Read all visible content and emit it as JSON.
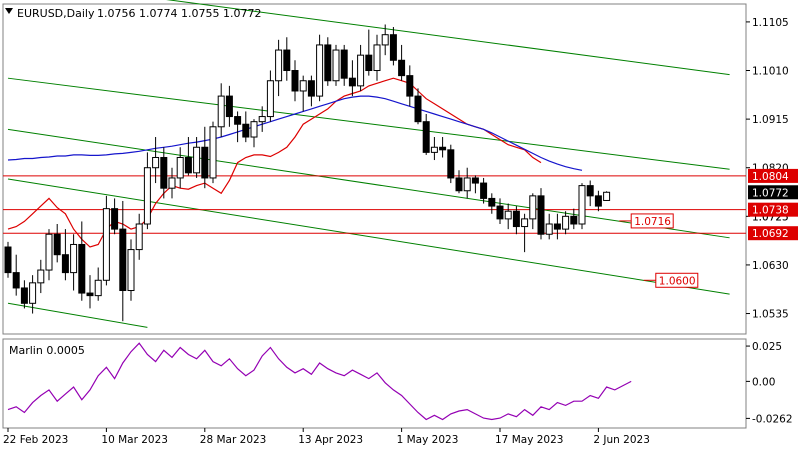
{
  "header": {
    "symbol_label": "EURUSD,Daily",
    "ohlc": "1.0756 1.0774 1.0755 1.0772"
  },
  "indicator": {
    "label": "Marlin 0.0005"
  },
  "chart_data": {
    "type": "candlestick",
    "price_axis": {
      "range": [
        1.0495,
        1.114
      ],
      "ticks": [
        "1.1105",
        "1.1010",
        "1.0915",
        "1.0820",
        "1.0725",
        "1.0630",
        "1.0535"
      ]
    },
    "osc_axis": {
      "range": [
        -0.033,
        0.03
      ],
      "ticks": [
        "0.025",
        "0.00",
        "-0.0262"
      ]
    },
    "x_ticks": [
      {
        "i": 0,
        "label": "22 Feb 2023"
      },
      {
        "i": 12,
        "label": "10 Mar 2023"
      },
      {
        "i": 24,
        "label": "28 Mar 2023"
      },
      {
        "i": 36,
        "label": "13 Apr 2023"
      },
      {
        "i": 48,
        "label": "1 May 2023"
      },
      {
        "i": 60,
        "label": "17 May 2023"
      },
      {
        "i": 72,
        "label": "2 Jun 2023"
      }
    ],
    "candles": [
      [
        1.0665,
        1.0675,
        1.0605,
        1.0615
      ],
      [
        1.0615,
        1.065,
        1.057,
        1.0585
      ],
      [
        1.0585,
        1.06,
        1.0545,
        1.0555
      ],
      [
        1.0555,
        1.061,
        1.0535,
        1.0595
      ],
      [
        1.0595,
        1.064,
        1.0575,
        1.062
      ],
      [
        1.062,
        1.07,
        1.06,
        1.069
      ],
      [
        1.069,
        1.071,
        1.0635,
        1.065
      ],
      [
        1.065,
        1.07,
        1.06,
        1.0615
      ],
      [
        1.0615,
        1.069,
        1.058,
        1.067
      ],
      [
        1.067,
        1.0715,
        1.056,
        1.0575
      ],
      [
        1.0575,
        1.061,
        1.0545,
        1.057
      ],
      [
        1.057,
        1.0625,
        1.056,
        1.06
      ],
      [
        1.06,
        1.0765,
        1.059,
        1.074
      ],
      [
        1.074,
        1.076,
        1.069,
        1.07
      ],
      [
        1.07,
        1.0755,
        1.052,
        1.058
      ],
      [
        1.058,
        1.068,
        1.056,
        1.066
      ],
      [
        1.066,
        1.073,
        1.064,
        1.071
      ],
      [
        1.071,
        1.085,
        1.07,
        1.082
      ],
      [
        1.082,
        1.088,
        1.079,
        1.084
      ],
      [
        1.084,
        1.086,
        1.076,
        1.078
      ],
      [
        1.078,
        1.082,
        1.076,
        1.08
      ],
      [
        1.08,
        1.086,
        1.078,
        1.084
      ],
      [
        1.084,
        1.088,
        1.0805,
        1.081
      ],
      [
        1.081,
        1.088,
        1.08,
        1.086
      ],
      [
        1.086,
        1.09,
        1.078,
        1.08
      ],
      [
        1.08,
        1.091,
        1.079,
        1.09
      ],
      [
        1.09,
        1.0985,
        1.088,
        1.096
      ],
      [
        1.096,
        1.098,
        1.09,
        1.092
      ],
      [
        1.092,
        1.093,
        1.087,
        1.0905
      ],
      [
        1.0905,
        1.093,
        1.087,
        1.088
      ],
      [
        1.088,
        1.0915,
        1.086,
        1.091
      ],
      [
        1.091,
        1.094,
        1.089,
        1.092
      ],
      [
        1.092,
        1.101,
        1.091,
        1.099
      ],
      [
        1.099,
        1.107,
        1.096,
        1.105
      ],
      [
        1.105,
        1.1075,
        1.099,
        1.101
      ],
      [
        1.101,
        1.103,
        1.095,
        1.097
      ],
      [
        1.097,
        1.1,
        1.093,
        1.099
      ],
      [
        1.099,
        1.1,
        1.094,
        1.096
      ],
      [
        1.096,
        1.108,
        1.095,
        1.106
      ],
      [
        1.106,
        1.1075,
        1.098,
        1.099
      ],
      [
        1.099,
        1.106,
        1.098,
        1.105
      ],
      [
        1.105,
        1.106,
        1.098,
        1.0995
      ],
      [
        1.0995,
        1.103,
        1.096,
        1.098
      ],
      [
        1.098,
        1.106,
        1.097,
        1.104
      ],
      [
        1.104,
        1.109,
        1.1,
        1.101
      ],
      [
        1.101,
        1.108,
        1.099,
        1.106
      ],
      [
        1.106,
        1.11,
        1.104,
        1.108
      ],
      [
        1.108,
        1.1095,
        1.102,
        1.103
      ],
      [
        1.103,
        1.106,
        1.099,
        1.1
      ],
      [
        1.1,
        1.102,
        1.094,
        1.096
      ],
      [
        1.096,
        1.0975,
        1.0905,
        1.091
      ],
      [
        1.091,
        1.0925,
        1.0845,
        1.085
      ],
      [
        1.085,
        1.088,
        1.0835,
        1.086
      ],
      [
        1.086,
        1.088,
        1.084,
        1.0855
      ],
      [
        1.0855,
        1.0865,
        1.079,
        1.08
      ],
      [
        1.08,
        1.0815,
        1.077,
        1.0775
      ],
      [
        1.0775,
        1.082,
        1.076,
        1.08
      ],
      [
        1.08,
        1.0805,
        1.077,
        1.079
      ],
      [
        1.079,
        1.08,
        1.075,
        1.076
      ],
      [
        1.076,
        1.077,
        1.073,
        1.0745
      ],
      [
        1.0745,
        1.076,
        1.071,
        1.072
      ],
      [
        1.072,
        1.075,
        1.07,
        1.0735
      ],
      [
        1.0735,
        1.0745,
        1.069,
        1.0705
      ],
      [
        1.0705,
        1.073,
        1.0655,
        1.072
      ],
      [
        1.072,
        1.077,
        1.07,
        1.0765
      ],
      [
        1.0765,
        1.078,
        1.068,
        1.069
      ],
      [
        1.069,
        1.073,
        1.068,
        1.071
      ],
      [
        1.071,
        1.073,
        1.068,
        1.07
      ],
      [
        1.07,
        1.0735,
        1.069,
        1.0725
      ],
      [
        1.0725,
        1.074,
        1.07,
        1.071
      ],
      [
        1.071,
        1.079,
        1.07,
        1.0785
      ],
      [
        1.0785,
        1.0795,
        1.0745,
        1.0765
      ],
      [
        1.0765,
        1.0775,
        1.0735,
        1.0745
      ],
      [
        1.0756,
        1.0774,
        1.0755,
        1.0772
      ]
    ],
    "ma_red": [
      1.07,
      1.0705,
      1.0715,
      1.073,
      1.0745,
      1.076,
      1.0742,
      1.073,
      1.07,
      1.068,
      1.0665,
      1.067,
      1.07,
      1.0715,
      1.071,
      1.07,
      1.0705,
      1.072,
      1.075,
      1.077,
      1.0785,
      1.078,
      1.0778,
      1.0785,
      1.079,
      1.078,
      1.077,
      1.0795,
      1.083,
      1.084,
      1.0845,
      1.0845,
      1.0842,
      1.085,
      1.086,
      1.088,
      1.0905,
      1.0915,
      1.0925,
      1.0935,
      1.095,
      1.096,
      1.0965,
      1.097,
      1.098,
      1.0985,
      1.099,
      1.0995,
      1.099,
      1.0985,
      1.097,
      1.0955,
      1.0945,
      1.0935,
      1.0925,
      1.0915,
      1.0905,
      1.09,
      1.0895,
      1.0885,
      1.0875,
      1.0865,
      1.086,
      1.0855,
      1.084,
      1.083
    ],
    "ma_blue": [
      1.0835,
      1.0836,
      1.0838,
      1.0838,
      1.084,
      1.0841,
      1.0843,
      1.0843,
      1.0845,
      1.0845,
      1.0844,
      1.0844,
      1.0845,
      1.0847,
      1.0848,
      1.085,
      1.0852,
      1.0855,
      1.0858,
      1.086,
      1.0862,
      1.0865,
      1.0868,
      1.087,
      1.0873,
      1.0876,
      1.088,
      1.0885,
      1.089,
      1.0895,
      1.09,
      1.0905,
      1.091,
      1.0915,
      1.092,
      1.0925,
      1.093,
      1.0935,
      1.094,
      1.0945,
      1.095,
      1.0955,
      1.0958,
      1.096,
      1.096,
      1.0958,
      1.0955,
      1.095,
      1.0945,
      1.094,
      1.0935,
      1.093,
      1.0925,
      1.092,
      1.0915,
      1.091,
      1.0905,
      1.09,
      1.0895,
      1.0888,
      1.088,
      1.0872,
      1.0864,
      1.0856,
      1.0848,
      1.084,
      1.0833,
      1.0827,
      1.0822,
      1.0818,
      1.0815
    ],
    "marlin": [
      -0.02,
      -0.018,
      -0.022,
      -0.015,
      -0.01,
      -0.006,
      -0.014,
      -0.009,
      -0.004,
      -0.013,
      -0.006,
      0.004,
      0.01,
      0.002,
      0.013,
      0.021,
      0.027,
      0.019,
      0.014,
      0.022,
      0.017,
      0.024,
      0.019,
      0.016,
      0.022,
      0.014,
      0.011,
      0.016,
      0.009,
      0.004,
      0.008,
      0.018,
      0.024,
      0.016,
      0.01,
      0.006,
      0.009,
      0.005,
      0.013,
      0.009,
      0.006,
      0.004,
      0.008,
      0.005,
      0.002,
      0.006,
      -0.001,
      -0.006,
      -0.01,
      -0.016,
      -0.022,
      -0.027,
      -0.024,
      -0.027,
      -0.023,
      -0.021,
      -0.02,
      -0.023,
      -0.026,
      -0.027,
      -0.026,
      -0.023,
      -0.025,
      -0.02,
      -0.024,
      -0.018,
      -0.02,
      -0.015,
      -0.017,
      -0.014,
      -0.014,
      -0.01,
      -0.012,
      -0.004,
      -0.006,
      -0.003,
      0.0
    ],
    "channels": [
      {
        "color": "#008000",
        "i1": 0,
        "p1": 1.119,
        "i2": 88,
        "p2": 1.1002
      },
      {
        "color": "#008000",
        "i1": 0,
        "p1": 1.0995,
        "i2": 88,
        "p2": 1.0817
      },
      {
        "color": "#008000",
        "i1": 0,
        "p1": 1.0895,
        "i2": 88,
        "p2": 1.0683
      },
      {
        "color": "#008000",
        "i1": 0,
        "p1": 1.0798,
        "i2": 88,
        "p2": 1.0573
      },
      {
        "color": "#008000",
        "i1": 0,
        "p1": 1.0555,
        "i2": 17,
        "p2": 1.0508
      }
    ],
    "h_levels": [
      {
        "price": 1.0804,
        "label": "1.0804",
        "color": "#dd0000",
        "filled": true
      },
      {
        "price": 1.0738,
        "label": "1.0738",
        "color": "#dd0000",
        "filled": true
      },
      {
        "price": 1.0692,
        "label": "1.0692",
        "color": "#dd0000",
        "filled": true
      }
    ],
    "current_price": {
      "price": 1.0772,
      "label": "1.0772"
    },
    "hidden_tick": {
      "price": 1.0725,
      "label": "1.0725"
    },
    "target_labels": [
      {
        "price": 1.0716,
        "label": "1.0716",
        "i": 76
      },
      {
        "price": 1.06,
        "label": "1.0600",
        "i": 79
      }
    ]
  }
}
